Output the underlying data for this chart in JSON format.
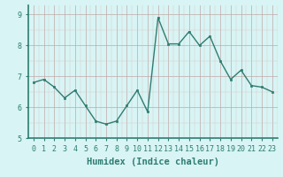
{
  "x": [
    0,
    1,
    2,
    3,
    4,
    5,
    6,
    7,
    8,
    9,
    10,
    11,
    12,
    13,
    14,
    15,
    16,
    17,
    18,
    19,
    20,
    21,
    22,
    23
  ],
  "y": [
    6.8,
    6.9,
    6.65,
    6.3,
    6.55,
    6.05,
    5.55,
    5.45,
    5.55,
    6.05,
    6.55,
    5.85,
    8.9,
    8.05,
    8.05,
    8.45,
    8.0,
    8.3,
    7.5,
    6.9,
    7.2,
    6.7,
    6.65,
    6.5
  ],
  "line_color": "#2e7d72",
  "marker": "s",
  "markersize": 2.0,
  "linewidth": 1.0,
  "bg_color": "#d8f4f4",
  "grid_color_major": "#c0a8a8",
  "grid_color_minor": "#d8c8c8",
  "xlabel": "Humidex (Indice chaleur)",
  "xlabel_fontsize": 7.5,
  "ylim": [
    5,
    9.3
  ],
  "xlim": [
    -0.5,
    23.5
  ],
  "yticks": [
    5,
    6,
    7,
    8,
    9
  ],
  "xticks": [
    0,
    1,
    2,
    3,
    4,
    5,
    6,
    7,
    8,
    9,
    10,
    11,
    12,
    13,
    14,
    15,
    16,
    17,
    18,
    19,
    20,
    21,
    22,
    23
  ],
  "tick_fontsize": 6.0,
  "spine_color": "#2e7d72"
}
